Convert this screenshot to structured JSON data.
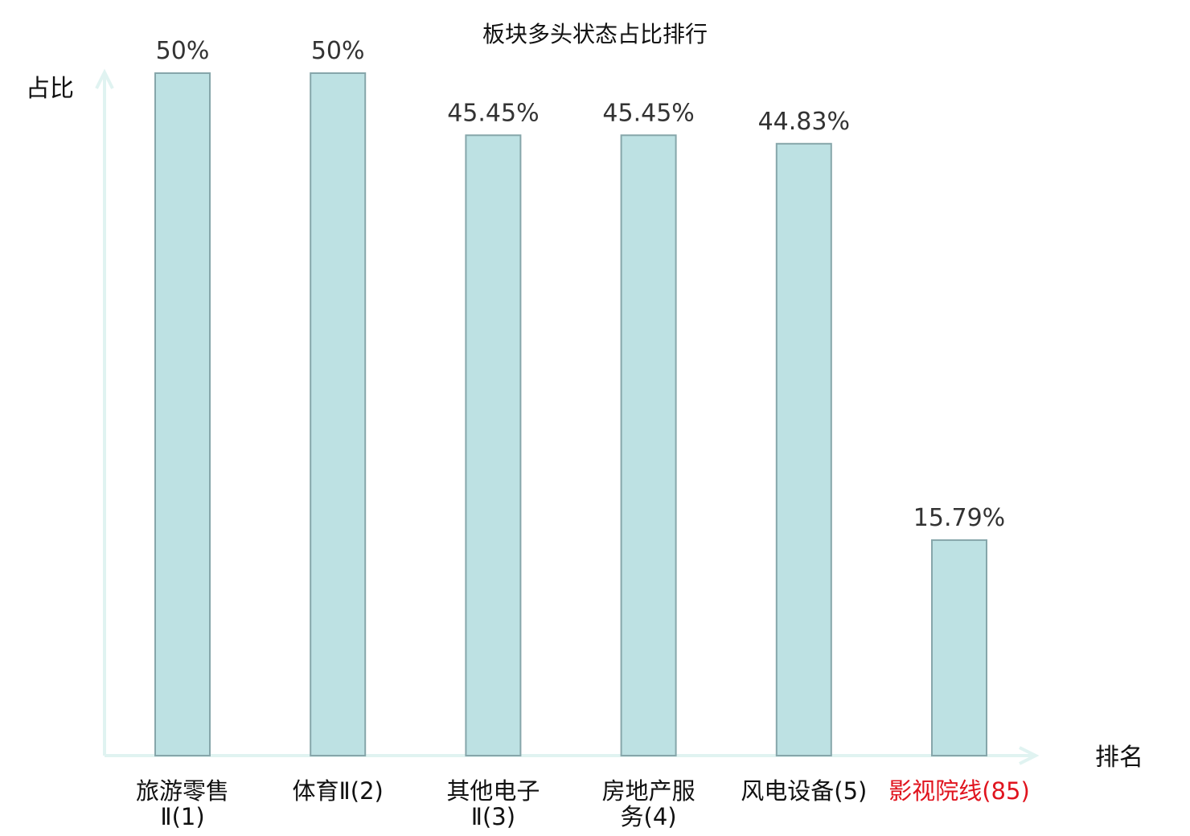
{
  "chart_data": {
    "type": "bar",
    "title": "板块多头状态占比排行",
    "xlabel": "排名",
    "ylabel": "占比",
    "ylim": [
      0,
      50
    ],
    "grid": false,
    "categories": [
      {
        "lines": [
          "旅游零售",
          "Ⅱ(1)"
        ],
        "highlight": false
      },
      {
        "lines": [
          "体育Ⅱ(2)"
        ],
        "highlight": false
      },
      {
        "lines": [
          "其他电子",
          "Ⅱ(3)"
        ],
        "highlight": false
      },
      {
        "lines": [
          "房地产服",
          "务(4)"
        ],
        "highlight": false
      },
      {
        "lines": [
          "风电设备(5)"
        ],
        "highlight": false
      },
      {
        "lines": [
          "影视院线(85)"
        ],
        "highlight": true
      }
    ],
    "values": [
      50,
      50,
      45.45,
      45.45,
      44.83,
      15.79
    ],
    "value_labels": [
      "50%",
      "50%",
      "45.45%",
      "45.45%",
      "44.83%",
      "15.79%"
    ]
  },
  "colors": {
    "bar_fill": "#bde1e3",
    "bar_stroke": "#86a6aa",
    "axis": "#e0f3f1",
    "label_normal": "#111111",
    "label_highlight": "#e0141e"
  }
}
